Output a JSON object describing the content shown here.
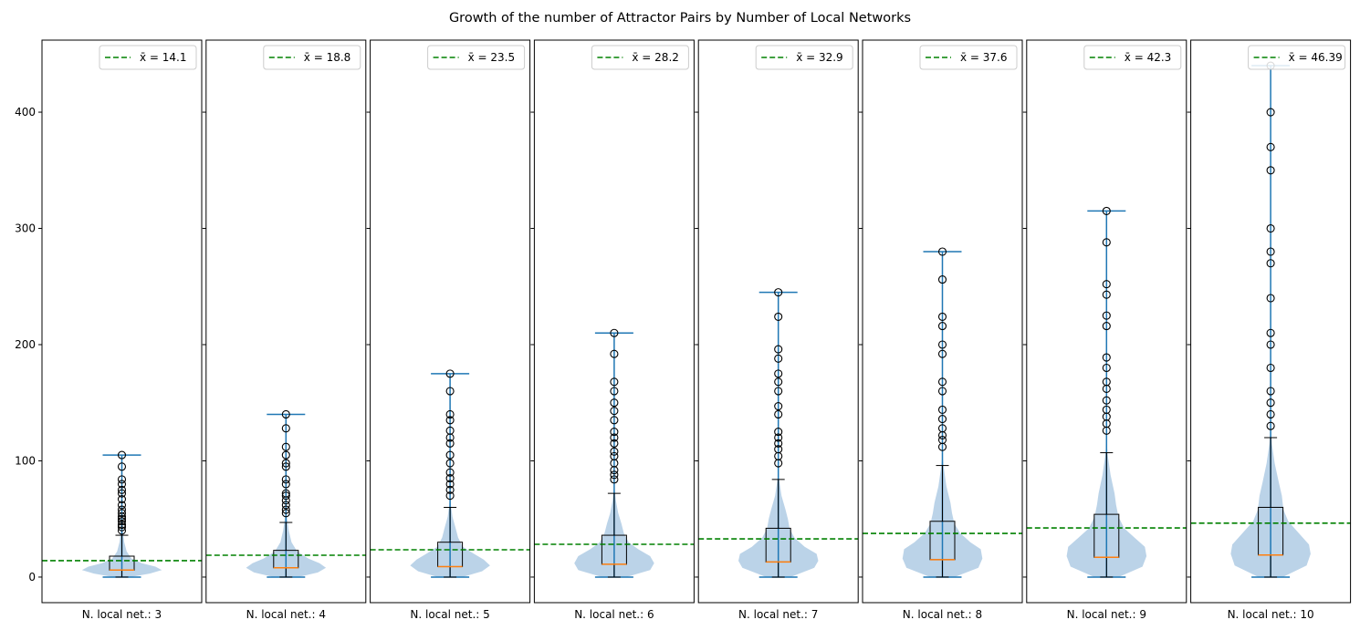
{
  "chart_data": {
    "type": "violin",
    "title": "Growth of the number of Attractor Pairs by Number of Local Networks",
    "ylim": [
      -22,
      462
    ],
    "yticks": [
      0,
      100,
      200,
      300,
      400
    ],
    "shared_y": true,
    "grid": false,
    "legend_placement": "top-right",
    "colors": {
      "violin_fill": "#b7d1e7",
      "whisker_line": "#1f77b4",
      "box": "#000000",
      "median": "#ff7f0e",
      "mean_line": "#008000",
      "flier": "#000000"
    },
    "panels": [
      {
        "xlabel": "N. local net.: 3",
        "legend_label": "x̄ = 14.1",
        "mean": 14.1,
        "min": 0,
        "max": 105,
        "q1": 6,
        "median": 6,
        "q3": 18,
        "whisker_high": 36,
        "outliers": [
          40,
          43,
          45,
          48,
          50,
          52,
          55,
          58,
          62,
          67,
          72,
          75,
          80,
          84,
          95,
          105
        ],
        "violin_profile": [
          [
            0,
            0.1
          ],
          [
            3,
            0.35
          ],
          [
            6,
            0.5
          ],
          [
            9,
            0.42
          ],
          [
            12,
            0.25
          ],
          [
            16,
            0.12
          ],
          [
            22,
            0.06
          ],
          [
            30,
            0.03
          ],
          [
            38,
            0.015
          ],
          [
            45,
            0
          ]
        ]
      },
      {
        "xlabel": "N. local net.: 4",
        "legend_label": "x̄ = 18.8",
        "mean": 18.8,
        "min": 0,
        "max": 140,
        "q1": 8,
        "median": 8,
        "q3": 23,
        "whisker_high": 47,
        "outliers": [
          55,
          58,
          62,
          66,
          70,
          72,
          80,
          84,
          95,
          98,
          105,
          112,
          128,
          140
        ],
        "violin_profile": [
          [
            0,
            0.15
          ],
          [
            4,
            0.4
          ],
          [
            8,
            0.5
          ],
          [
            12,
            0.42
          ],
          [
            16,
            0.28
          ],
          [
            22,
            0.14
          ],
          [
            30,
            0.07
          ],
          [
            40,
            0.035
          ],
          [
            50,
            0.015
          ],
          [
            58,
            0
          ]
        ]
      },
      {
        "xlabel": "N. local net.: 5",
        "legend_label": "x̄ = 23.5",
        "mean": 23.5,
        "min": 0,
        "max": 175,
        "q1": 9,
        "median": 9,
        "q3": 30,
        "whisker_high": 60,
        "outliers": [
          70,
          75,
          80,
          85,
          90,
          98,
          105,
          115,
          120,
          126,
          135,
          140,
          160,
          175
        ],
        "violin_profile": [
          [
            0,
            0.15
          ],
          [
            5,
            0.4
          ],
          [
            10,
            0.5
          ],
          [
            15,
            0.42
          ],
          [
            20,
            0.3
          ],
          [
            26,
            0.16
          ],
          [
            34,
            0.1
          ],
          [
            42,
            0.07
          ],
          [
            52,
            0.03
          ],
          [
            62,
            0.01
          ],
          [
            70,
            0
          ]
        ]
      },
      {
        "xlabel": "N. local net.: 6",
        "legend_label": "x̄ = 28.2",
        "mean": 28.2,
        "min": 0,
        "max": 210,
        "q1": 11,
        "median": 11,
        "q3": 36,
        "whisker_high": 72,
        "outliers": [
          84,
          88,
          92,
          98,
          104,
          108,
          115,
          120,
          125,
          135,
          143,
          150,
          160,
          168,
          192,
          210
        ],
        "violin_profile": [
          [
            0,
            0.15
          ],
          [
            6,
            0.45
          ],
          [
            12,
            0.5
          ],
          [
            18,
            0.45
          ],
          [
            24,
            0.3
          ],
          [
            30,
            0.18
          ],
          [
            38,
            0.12
          ],
          [
            46,
            0.09
          ],
          [
            55,
            0.05
          ],
          [
            66,
            0.02
          ],
          [
            80,
            0
          ]
        ]
      },
      {
        "xlabel": "N. local net.: 7",
        "legend_label": "x̄ = 32.9",
        "mean": 32.9,
        "min": 0,
        "max": 245,
        "q1": 13,
        "median": 13,
        "q3": 42,
        "whisker_high": 84,
        "outliers": [
          98,
          104,
          110,
          115,
          120,
          125,
          140,
          147,
          160,
          168,
          175,
          188,
          196,
          224,
          245
        ],
        "violin_profile": [
          [
            0,
            0.15
          ],
          [
            8,
            0.45
          ],
          [
            14,
            0.5
          ],
          [
            20,
            0.48
          ],
          [
            26,
            0.33
          ],
          [
            34,
            0.2
          ],
          [
            42,
            0.14
          ],
          [
            50,
            0.12
          ],
          [
            58,
            0.09
          ],
          [
            70,
            0.04
          ],
          [
            84,
            0.01
          ],
          [
            94,
            0
          ]
        ]
      },
      {
        "xlabel": "N. local net.: 8",
        "legend_label": "x̄ = 37.6",
        "mean": 37.6,
        "min": 0,
        "max": 280,
        "q1": 15,
        "median": 15,
        "q3": 48,
        "whisker_high": 96,
        "outliers": [
          112,
          118,
          122,
          128,
          136,
          144,
          160,
          168,
          192,
          200,
          216,
          224,
          256,
          280
        ],
        "violin_profile": [
          [
            0,
            0.15
          ],
          [
            8,
            0.45
          ],
          [
            16,
            0.5
          ],
          [
            24,
            0.48
          ],
          [
            30,
            0.35
          ],
          [
            38,
            0.22
          ],
          [
            46,
            0.15
          ],
          [
            55,
            0.12
          ],
          [
            64,
            0.1
          ],
          [
            78,
            0.05
          ],
          [
            95,
            0.015
          ],
          [
            106,
            0
          ]
        ]
      },
      {
        "xlabel": "N. local net.: 9",
        "legend_label": "x̄ = 42.3",
        "mean": 42.3,
        "min": 0,
        "max": 315,
        "q1": 17,
        "median": 17,
        "q3": 54,
        "whisker_high": 107,
        "outliers": [
          126,
          132,
          138,
          144,
          152,
          162,
          168,
          180,
          189,
          216,
          225,
          243,
          252,
          288,
          315
        ],
        "violin_profile": [
          [
            0,
            0.15
          ],
          [
            9,
            0.45
          ],
          [
            18,
            0.5
          ],
          [
            26,
            0.48
          ],
          [
            34,
            0.35
          ],
          [
            42,
            0.22
          ],
          [
            52,
            0.15
          ],
          [
            62,
            0.12
          ],
          [
            72,
            0.1
          ],
          [
            88,
            0.05
          ],
          [
            105,
            0.015
          ],
          [
            118,
            0
          ]
        ]
      },
      {
        "xlabel": "N. local net.: 10",
        "legend_label": "x̄ = 46.39",
        "mean": 46.39,
        "min": 0,
        "max": 440,
        "q1": 19,
        "median": 19,
        "q3": 60,
        "whisker_high": 120,
        "outliers": [
          130,
          140,
          150,
          160,
          180,
          200,
          210,
          240,
          270,
          280,
          300,
          350,
          370,
          400,
          440
        ],
        "violin_profile": [
          [
            0,
            0.15
          ],
          [
            10,
            0.45
          ],
          [
            20,
            0.5
          ],
          [
            28,
            0.48
          ],
          [
            38,
            0.35
          ],
          [
            48,
            0.22
          ],
          [
            58,
            0.16
          ],
          [
            70,
            0.14
          ],
          [
            82,
            0.1
          ],
          [
            98,
            0.05
          ],
          [
            115,
            0.015
          ],
          [
            130,
            0
          ]
        ]
      }
    ]
  }
}
